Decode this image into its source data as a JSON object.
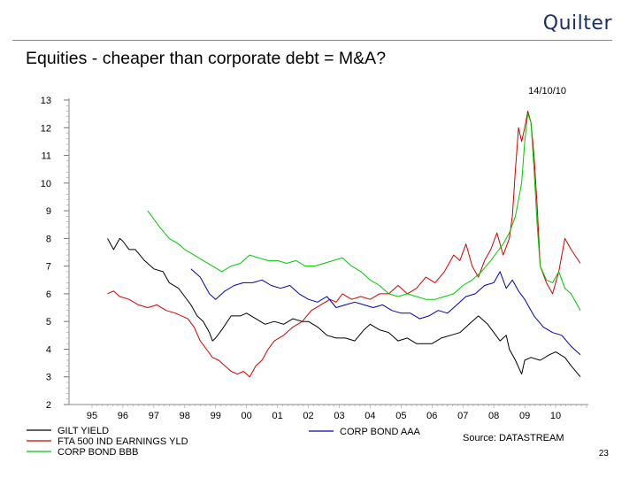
{
  "header": {
    "logo_text": "Quilter",
    "title": "Equities - cheaper than corporate debt = M&A?"
  },
  "footer": {
    "source": "Source: DATASTREAM",
    "page_number": "23"
  },
  "chart_data": {
    "type": "line",
    "date_label": "14/10/10",
    "y_ticks": [
      "2",
      "3",
      "4",
      "5",
      "6",
      "7",
      "8",
      "9",
      "10",
      "11",
      "12",
      "13"
    ],
    "x_ticks": [
      "95",
      "96",
      "97",
      "98",
      "99",
      "00",
      "01",
      "02",
      "03",
      "04",
      "05",
      "06",
      "07",
      "08",
      "09",
      "10"
    ],
    "ylim": [
      2,
      13
    ],
    "xlim": [
      1994.7,
      2011.0
    ],
    "grid": false,
    "legend_position": "bottom",
    "series": [
      {
        "name": "GILT YIELD",
        "color": "#000000",
        "x": [
          1995.5,
          1995.7,
          1995.9,
          1996.0,
          1996.2,
          1996.4,
          1996.7,
          1997.0,
          1997.3,
          1997.5,
          1997.8,
          1998.0,
          1998.2,
          1998.4,
          1998.6,
          1998.8,
          1998.9,
          1999.0,
          1999.2,
          1999.5,
          1999.8,
          2000.0,
          2000.3,
          2000.6,
          2000.9,
          2001.2,
          2001.5,
          2001.8,
          2002.0,
          2002.3,
          2002.6,
          2002.9,
          2003.2,
          2003.5,
          2003.8,
          2004.0,
          2004.3,
          2004.6,
          2004.9,
          2005.2,
          2005.5,
          2005.8,
          2006.0,
          2006.3,
          2006.6,
          2006.9,
          2007.2,
          2007.5,
          2007.8,
          2008.0,
          2008.2,
          2008.4,
          2008.5,
          2008.7,
          2008.9,
          2009.0,
          2009.2,
          2009.5,
          2009.8,
          2010.0,
          2010.3,
          2010.5,
          2010.8
        ],
        "y": [
          8.0,
          7.6,
          8.0,
          7.9,
          7.6,
          7.6,
          7.2,
          6.9,
          6.8,
          6.4,
          6.2,
          5.9,
          5.6,
          5.2,
          5.0,
          4.6,
          4.3,
          4.4,
          4.7,
          5.2,
          5.2,
          5.3,
          5.1,
          4.9,
          5.0,
          4.9,
          5.1,
          5.0,
          5.0,
          4.8,
          4.5,
          4.4,
          4.4,
          4.3,
          4.7,
          4.9,
          4.7,
          4.6,
          4.3,
          4.4,
          4.2,
          4.2,
          4.2,
          4.4,
          4.5,
          4.6,
          4.9,
          5.2,
          4.9,
          4.6,
          4.3,
          4.5,
          4.0,
          3.6,
          3.1,
          3.6,
          3.7,
          3.6,
          3.8,
          3.9,
          3.7,
          3.4,
          3.0
        ]
      },
      {
        "name": "FTA 500 IND EARNINGS YLD",
        "color": "#d10000",
        "x": [
          1995.5,
          1995.7,
          1995.9,
          1996.2,
          1996.5,
          1996.8,
          1997.1,
          1997.4,
          1997.7,
          1997.9,
          1998.1,
          1998.3,
          1998.5,
          1998.7,
          1998.9,
          1999.1,
          1999.3,
          1999.5,
          1999.7,
          1999.9,
          2000.1,
          2000.3,
          2000.5,
          2000.7,
          2000.9,
          2001.2,
          2001.5,
          2001.8,
          2002.1,
          2002.4,
          2002.7,
          2002.9,
          2003.1,
          2003.4,
          2003.7,
          2004.0,
          2004.3,
          2004.6,
          2004.9,
          2005.2,
          2005.5,
          2005.8,
          2006.1,
          2006.4,
          2006.7,
          2006.9,
          2007.1,
          2007.3,
          2007.5,
          2007.7,
          2007.9,
          2008.1,
          2008.3,
          2008.5,
          2008.6,
          2008.7,
          2008.8,
          2008.9,
          2009.0,
          2009.1,
          2009.2,
          2009.3,
          2009.4,
          2009.5,
          2009.7,
          2009.9,
          2010.1,
          2010.3,
          2010.5,
          2010.8
        ],
        "y": [
          6.0,
          6.1,
          5.9,
          5.8,
          5.6,
          5.5,
          5.6,
          5.4,
          5.3,
          5.2,
          5.1,
          4.8,
          4.3,
          4.0,
          3.7,
          3.6,
          3.4,
          3.2,
          3.1,
          3.2,
          3.0,
          3.4,
          3.6,
          4.0,
          4.3,
          4.5,
          4.8,
          5.0,
          5.4,
          5.6,
          5.8,
          5.7,
          6.0,
          5.8,
          5.9,
          5.8,
          6.0,
          6.0,
          6.3,
          6.0,
          6.2,
          6.6,
          6.4,
          6.8,
          7.4,
          7.2,
          7.8,
          7.0,
          6.6,
          7.2,
          7.6,
          8.2,
          7.4,
          8.0,
          8.8,
          10.5,
          12.0,
          11.5,
          12.0,
          12.6,
          12.2,
          11.0,
          9.2,
          7.0,
          6.4,
          6.0,
          6.8,
          8.0,
          7.6,
          7.1
        ]
      },
      {
        "name": "CORP BOND BBB",
        "color": "#00c800",
        "x": [
          1996.8,
          1997.0,
          1997.2,
          1997.5,
          1997.8,
          1998.0,
          1998.3,
          1998.6,
          1998.9,
          1999.2,
          1999.5,
          1999.8,
          2000.1,
          2000.4,
          2000.7,
          2001.0,
          2001.3,
          2001.6,
          2001.9,
          2002.2,
          2002.5,
          2002.8,
          2003.1,
          2003.4,
          2003.7,
          2004.0,
          2004.3,
          2004.6,
          2004.9,
          2005.2,
          2005.5,
          2005.8,
          2006.1,
          2006.4,
          2006.7,
          2007.0,
          2007.3,
          2007.6,
          2007.9,
          2008.1,
          2008.3,
          2008.5,
          2008.7,
          2008.9,
          2009.0,
          2009.1,
          2009.2,
          2009.3,
          2009.4,
          2009.5,
          2009.7,
          2009.9,
          2010.1,
          2010.3,
          2010.5,
          2010.8
        ],
        "y": [
          9.0,
          8.7,
          8.4,
          8.0,
          7.8,
          7.6,
          7.4,
          7.2,
          7.0,
          6.8,
          7.0,
          7.1,
          7.4,
          7.3,
          7.2,
          7.2,
          7.1,
          7.2,
          7.0,
          7.0,
          7.1,
          7.2,
          7.3,
          7.0,
          6.8,
          6.5,
          6.3,
          6.0,
          5.9,
          6.0,
          5.9,
          5.8,
          5.8,
          5.9,
          6.0,
          6.3,
          6.5,
          6.8,
          7.2,
          7.5,
          7.8,
          8.2,
          8.8,
          10.0,
          11.5,
          12.5,
          12.2,
          10.5,
          8.5,
          7.0,
          6.5,
          6.4,
          6.8,
          6.2,
          6.0,
          5.4
        ]
      },
      {
        "name": "CORP BOND AAA",
        "color": "#0000b4",
        "x": [
          1998.2,
          1998.5,
          1998.8,
          1999.0,
          1999.3,
          1999.6,
          1999.9,
          2000.2,
          2000.5,
          2000.8,
          2001.1,
          2001.4,
          2001.7,
          2002.0,
          2002.3,
          2002.6,
          2002.9,
          2003.2,
          2003.5,
          2003.8,
          2004.1,
          2004.4,
          2004.7,
          2005.0,
          2005.3,
          2005.6,
          2005.9,
          2006.2,
          2006.5,
          2006.8,
          2007.1,
          2007.4,
          2007.7,
          2008.0,
          2008.2,
          2008.4,
          2008.6,
          2008.8,
          2009.0,
          2009.3,
          2009.6,
          2009.9,
          2010.2,
          2010.5,
          2010.8
        ],
        "y": [
          6.9,
          6.6,
          6.0,
          5.8,
          6.1,
          6.3,
          6.4,
          6.4,
          6.5,
          6.3,
          6.2,
          6.3,
          6.0,
          5.8,
          5.7,
          5.9,
          5.5,
          5.6,
          5.7,
          5.6,
          5.5,
          5.6,
          5.4,
          5.3,
          5.3,
          5.1,
          5.2,
          5.4,
          5.3,
          5.6,
          5.9,
          6.0,
          6.3,
          6.4,
          6.8,
          6.2,
          6.5,
          6.1,
          5.8,
          5.2,
          4.8,
          4.6,
          4.5,
          4.1,
          3.8
        ]
      }
    ]
  }
}
